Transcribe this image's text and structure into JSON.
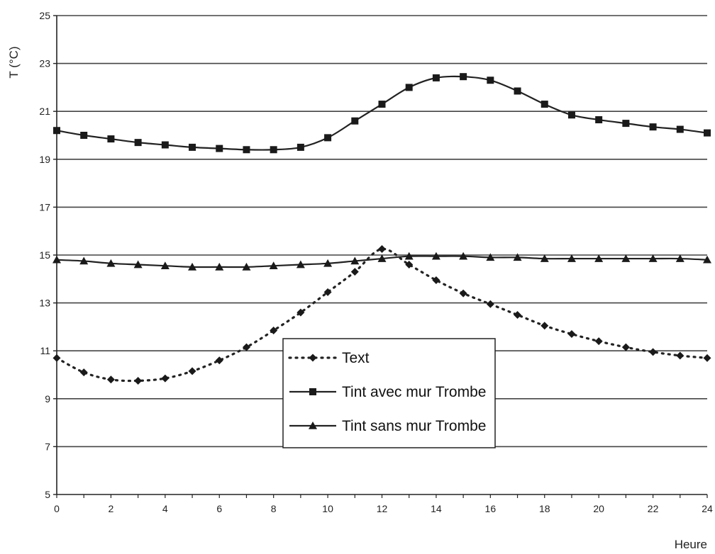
{
  "chart_data": {
    "type": "line",
    "title": "",
    "xlabel": "Heure",
    "ylabel": "T (°C)",
    "xlim": [
      0,
      24
    ],
    "ylim": [
      5,
      25
    ],
    "xticks": [
      0,
      2,
      4,
      6,
      8,
      10,
      12,
      14,
      16,
      18,
      20,
      22,
      24
    ],
    "yticks": [
      5,
      7,
      9,
      11,
      13,
      15,
      17,
      19,
      21,
      23,
      25
    ],
    "grid": "horizontal",
    "legend_position": "center-bottom",
    "x": [
      0,
      1,
      2,
      3,
      4,
      5,
      6,
      7,
      8,
      9,
      10,
      11,
      12,
      13,
      14,
      15,
      16,
      17,
      18,
      19,
      20,
      21,
      22,
      23,
      24
    ],
    "series": [
      {
        "name": "Text",
        "marker": "diamond",
        "line_style": "dotted",
        "values": [
          10.7,
          10.1,
          9.8,
          9.75,
          9.85,
          10.15,
          10.6,
          11.15,
          11.85,
          12.6,
          13.45,
          14.3,
          15.25,
          14.6,
          13.95,
          13.4,
          12.95,
          12.5,
          12.05,
          11.7,
          11.4,
          11.15,
          10.95,
          10.8,
          10.7
        ],
        "color": "#222222"
      },
      {
        "name": "Tint avec mur Trombe",
        "marker": "square",
        "line_style": "solid",
        "values": [
          20.2,
          20.0,
          19.85,
          19.7,
          19.6,
          19.5,
          19.45,
          19.4,
          19.4,
          19.5,
          19.9,
          20.6,
          21.3,
          22.0,
          22.4,
          22.45,
          22.3,
          21.85,
          21.3,
          20.85,
          20.65,
          20.5,
          20.35,
          20.25,
          20.1
        ],
        "color": "#222222"
      },
      {
        "name": "Tint sans mur Trombe",
        "marker": "triangle",
        "line_style": "solid",
        "values": [
          14.8,
          14.75,
          14.65,
          14.6,
          14.55,
          14.5,
          14.5,
          14.5,
          14.55,
          14.6,
          14.65,
          14.75,
          14.85,
          14.95,
          14.95,
          14.95,
          14.9,
          14.9,
          14.85,
          14.85,
          14.85,
          14.85,
          14.85,
          14.85,
          14.8
        ],
        "color": "#222222"
      }
    ]
  }
}
